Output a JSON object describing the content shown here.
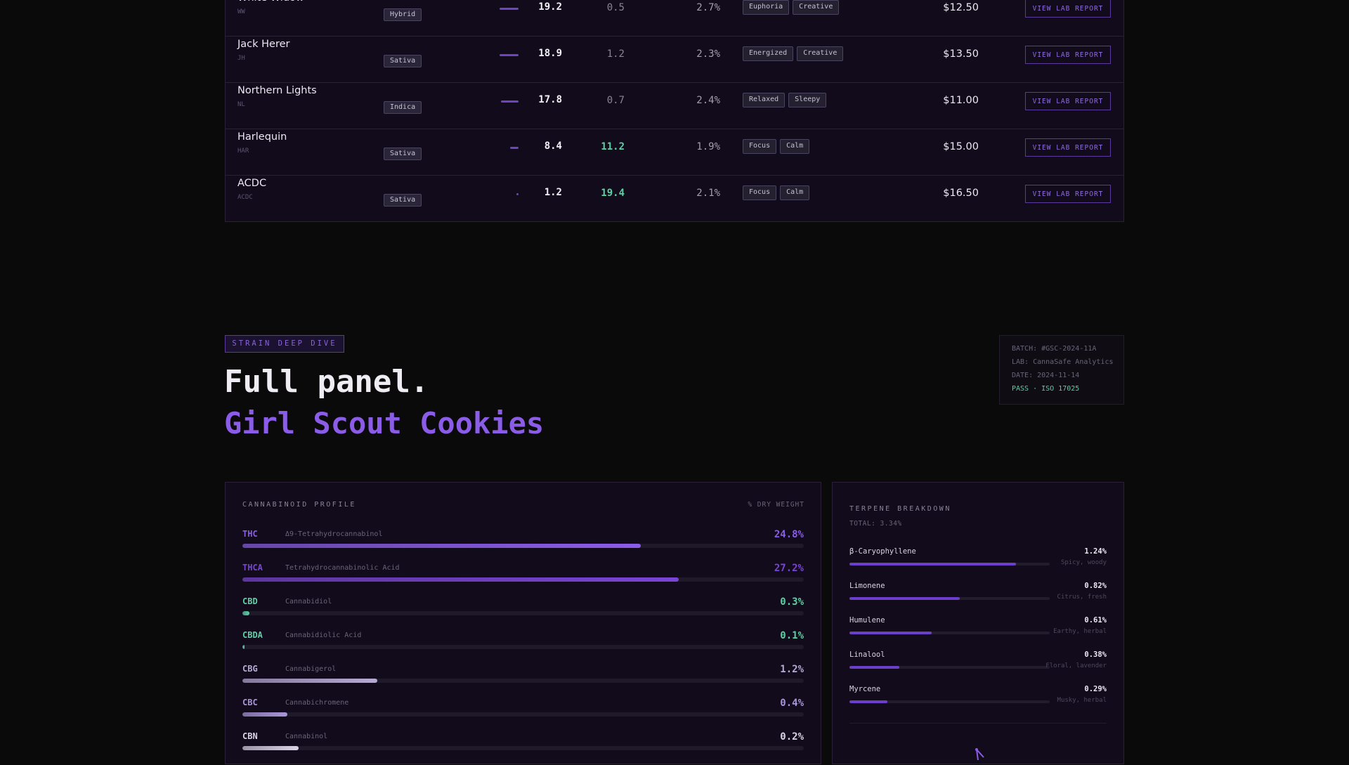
{
  "strains": [
    {
      "name": "White Widow",
      "code": "WW",
      "type": "Hybrid",
      "thc": "19.2",
      "thc_value": 19.2,
      "cbd": "0.5",
      "cbd_high": false,
      "terpenes": "2.7%",
      "effects": [
        "Euphoria",
        "Creative"
      ],
      "price": "$12.50",
      "action": "VIEW LAB REPORT"
    },
    {
      "name": "Jack Herer",
      "code": "JH",
      "type": "Sativa",
      "thc": "18.9",
      "thc_value": 18.9,
      "cbd": "1.2",
      "cbd_high": false,
      "terpenes": "2.3%",
      "effects": [
        "Energized",
        "Creative"
      ],
      "price": "$13.50",
      "action": "VIEW LAB REPORT"
    },
    {
      "name": "Northern Lights",
      "code": "NL",
      "type": "Indica",
      "thc": "17.8",
      "thc_value": 17.8,
      "cbd": "0.7",
      "cbd_high": false,
      "terpenes": "2.4%",
      "effects": [
        "Relaxed",
        "Sleepy"
      ],
      "price": "$11.00",
      "action": "VIEW LAB REPORT"
    },
    {
      "name": "Harlequin",
      "code": "HAR",
      "type": "Sativa",
      "thc": "8.4",
      "thc_value": 8.4,
      "cbd": "11.2",
      "cbd_high": true,
      "terpenes": "1.9%",
      "effects": [
        "Focus",
        "Calm"
      ],
      "price": "$15.00",
      "action": "VIEW LAB REPORT"
    },
    {
      "name": "ACDC",
      "code": "ACDC",
      "type": "Sativa",
      "thc": "1.2",
      "thc_value": 1.2,
      "cbd": "19.4",
      "cbd_high": true,
      "terpenes": "2.1%",
      "effects": [
        "Focus",
        "Calm"
      ],
      "price": "$16.50",
      "action": "VIEW LAB REPORT"
    }
  ],
  "deep_dive": {
    "tag": "STRAIN DEEP DIVE",
    "headline": "Full panel.",
    "strain": "Girl Scout Cookies"
  },
  "batch": {
    "batch": "BATCH: #GSC-2024-11A",
    "lab": "LAB: CannaSafe Analytics",
    "date": "DATE: 2024-11-14",
    "status": "PASS · ISO 17025"
  },
  "cannabinoid_panel": {
    "title": "CANNABINOID PROFILE",
    "note": "% DRY WEIGHT",
    "items": [
      {
        "abbr": "THC",
        "name": "Δ9-Tetrahydrocannabinol",
        "value": "24.8%",
        "level": 0.71,
        "color": "#8b5ce8"
      },
      {
        "abbr": "THCA",
        "name": "Tetrahydrocannabinolic Acid",
        "value": "27.2%",
        "level": 0.777,
        "color": "#7a44d6"
      },
      {
        "abbr": "CBD",
        "name": "Cannabidiol",
        "value": "0.3%",
        "level": 0.013,
        "color": "#5ed0a4"
      },
      {
        "abbr": "CBDA",
        "name": "Cannabidiolic Acid",
        "value": "0.1%",
        "level": 0.004,
        "color": "#5ed0a4"
      },
      {
        "abbr": "CBG",
        "name": "Cannabigerol",
        "value": "1.2%",
        "level": 0.24,
        "color": "#b7aad4"
      },
      {
        "abbr": "CBC",
        "name": "Cannabichromene",
        "value": "0.4%",
        "level": 0.08,
        "color": "#a996d8"
      },
      {
        "abbr": "CBN",
        "name": "Cannabinol",
        "value": "0.2%",
        "level": 0.1,
        "color": "#d9d3e6"
      }
    ]
  },
  "terpene_panel": {
    "title": "TERPENE BREAKDOWN",
    "total": "TOTAL: 3.34%",
    "items": [
      {
        "name": "β-Caryophyllene",
        "value": "1.24%",
        "level": 0.83,
        "aroma": "Spicy, woody"
      },
      {
        "name": "Limonene",
        "value": "0.82%",
        "level": 0.55,
        "aroma": "Citrus, fresh"
      },
      {
        "name": "Humulene",
        "value": "0.61%",
        "level": 0.41,
        "aroma": "Earthy, herbal"
      },
      {
        "name": "Linalool",
        "value": "0.38%",
        "level": 0.25,
        "aroma": "Floral, lavender"
      },
      {
        "name": "Myrcene",
        "value": "0.29%",
        "level": 0.19,
        "aroma": "Musky, herbal"
      }
    ]
  },
  "icons": {
    "radar": "radar-chart-icon"
  },
  "colors": {
    "accent": "#8b5ce8",
    "cbd_green": "#5ed0a4",
    "background": "#0a0a0a",
    "panel": "#110b1c"
  }
}
